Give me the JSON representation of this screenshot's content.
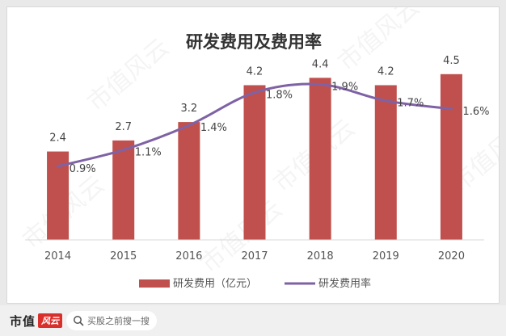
{
  "chart_data": {
    "type": "bar",
    "title": "研发费用及费用率",
    "categories": [
      "2014",
      "2015",
      "2016",
      "2017",
      "2018",
      "2019",
      "2020"
    ],
    "series": [
      {
        "name": "研发费用（亿元）",
        "type": "bar",
        "values": [
          2.4,
          2.7,
          3.2,
          4.2,
          4.4,
          4.2,
          4.5
        ],
        "labels": [
          "2.4",
          "2.7",
          "3.2",
          "4.2",
          "4.4",
          "4.2",
          "4.5"
        ],
        "color": "#c0504d"
      },
      {
        "name": "研发费用率",
        "type": "line",
        "values": [
          0.9,
          1.1,
          1.4,
          1.8,
          1.9,
          1.7,
          1.6
        ],
        "labels": [
          "0.9%",
          "1.1%",
          "1.4%",
          "1.8%",
          "1.9%",
          "1.7%",
          "1.6%"
        ],
        "color": "#7f62a5",
        "unit": "%"
      }
    ],
    "ylim_bar": [
      0,
      5.0
    ],
    "ylim_line": [
      0,
      2.25
    ],
    "grid": false,
    "legend_position": "bottom"
  },
  "watermark": "市值风云",
  "footer": {
    "brand": "市值",
    "brand_logo": "风云",
    "search_text": "买股之前搜一搜"
  }
}
